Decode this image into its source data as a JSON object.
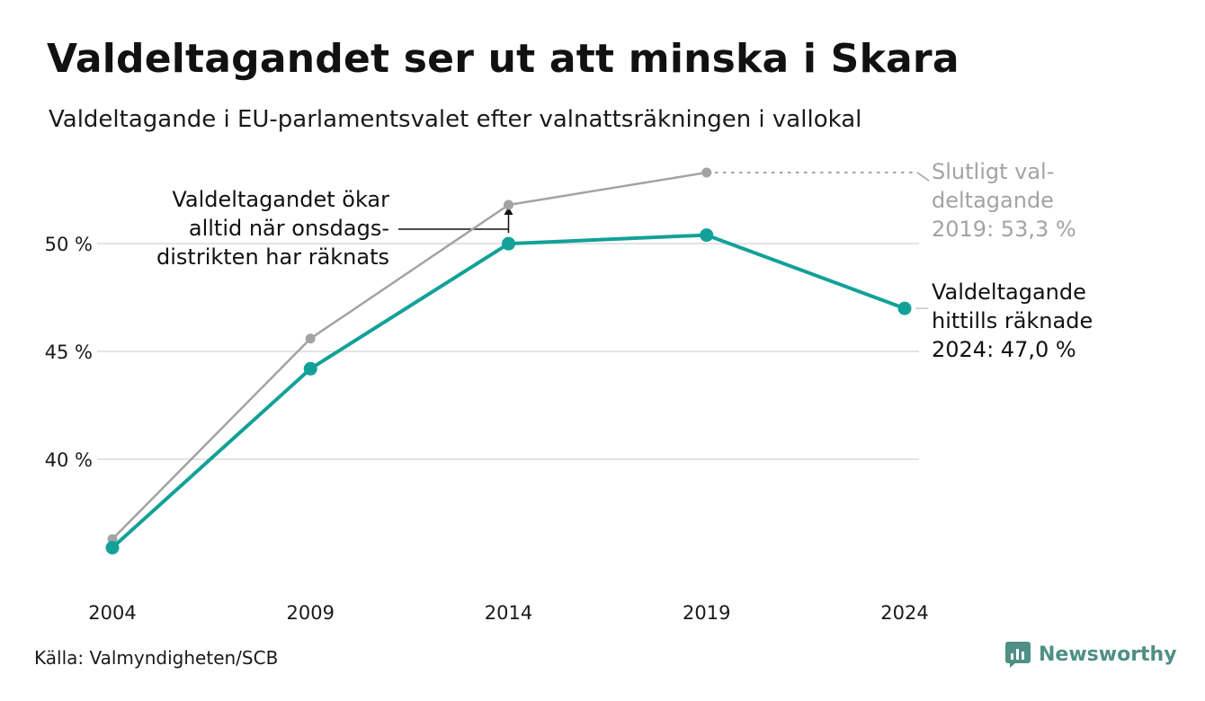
{
  "title": "Valdeltagandet ser ut att minska i Skara",
  "subtitle": "Valdeltagande i EU-parlamentsvalet efter valnattsräkningen i vallokal",
  "source": "Källa: Valmyndigheten/SCB",
  "brand": "Newsworthy",
  "colors": {
    "counted": "#12a198",
    "final": "#a3a3a3",
    "grid": "#e2e2e2",
    "text": "#111111",
    "brand": "#4f8f85"
  },
  "chart_data": {
    "type": "line",
    "x": [
      2004,
      2009,
      2014,
      2019,
      2024
    ],
    "ylim": [
      35,
      53.3
    ],
    "yticks": [
      40,
      45,
      50
    ],
    "ytick_labels": [
      "40 %",
      "45 %",
      "50 %"
    ],
    "xtick_labels": [
      "2004",
      "2009",
      "2014",
      "2019",
      "2024"
    ],
    "grid": true,
    "series": [
      {
        "key": "final",
        "values": [
          36.3,
          45.6,
          51.8,
          53.3,
          null
        ]
      },
      {
        "key": "counted",
        "values": [
          35.9,
          44.2,
          50.0,
          50.4,
          47.0
        ]
      }
    ],
    "annotations": {
      "final": [
        "Slutligt val-",
        "deltagande",
        "2019: 53,3 %"
      ],
      "counted": [
        "Valdeltagande",
        "hittills räknade",
        "2024: 47,0 %"
      ],
      "note": [
        "Valdeltagandet ökar",
        "alltid när onsdags-",
        "distrikten har räknats"
      ]
    }
  }
}
